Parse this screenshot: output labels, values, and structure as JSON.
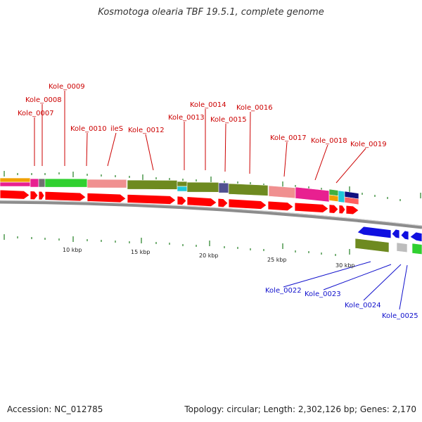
{
  "title": "Kosmotoga olearia TBF 19.5.1, complete genome",
  "footer": {
    "accession": "Accession: NC_012785",
    "topology": "Topology: circular; Length: 2,302,126 bp; Genes: 2,170"
  },
  "top_genes": [
    "Kole_0007",
    "Kole_0008",
    "Kole_0009",
    "Kole_0010",
    "ileS",
    "Kole_0012",
    "Kole_0013",
    "Kole_0014",
    "Kole_0015",
    "Kole_0016",
    "Kole_0017",
    "Kole_0018",
    "Kole_0019"
  ],
  "bottom_genes": [
    "Kole_0022",
    "Kole_0023",
    "Kole_0024",
    "Kole_0025"
  ],
  "scale_labels": [
    "10 kbp",
    "15 kbp",
    "20 kbp",
    "25 kbp",
    "30 kbp"
  ],
  "colors": {
    "forward": "#ff0000",
    "reverse": "#1010e0",
    "backbone": "#8c8c8c",
    "top_label": "#cc0000",
    "bottom_label": "#1010cc",
    "tick": "#338833"
  }
}
